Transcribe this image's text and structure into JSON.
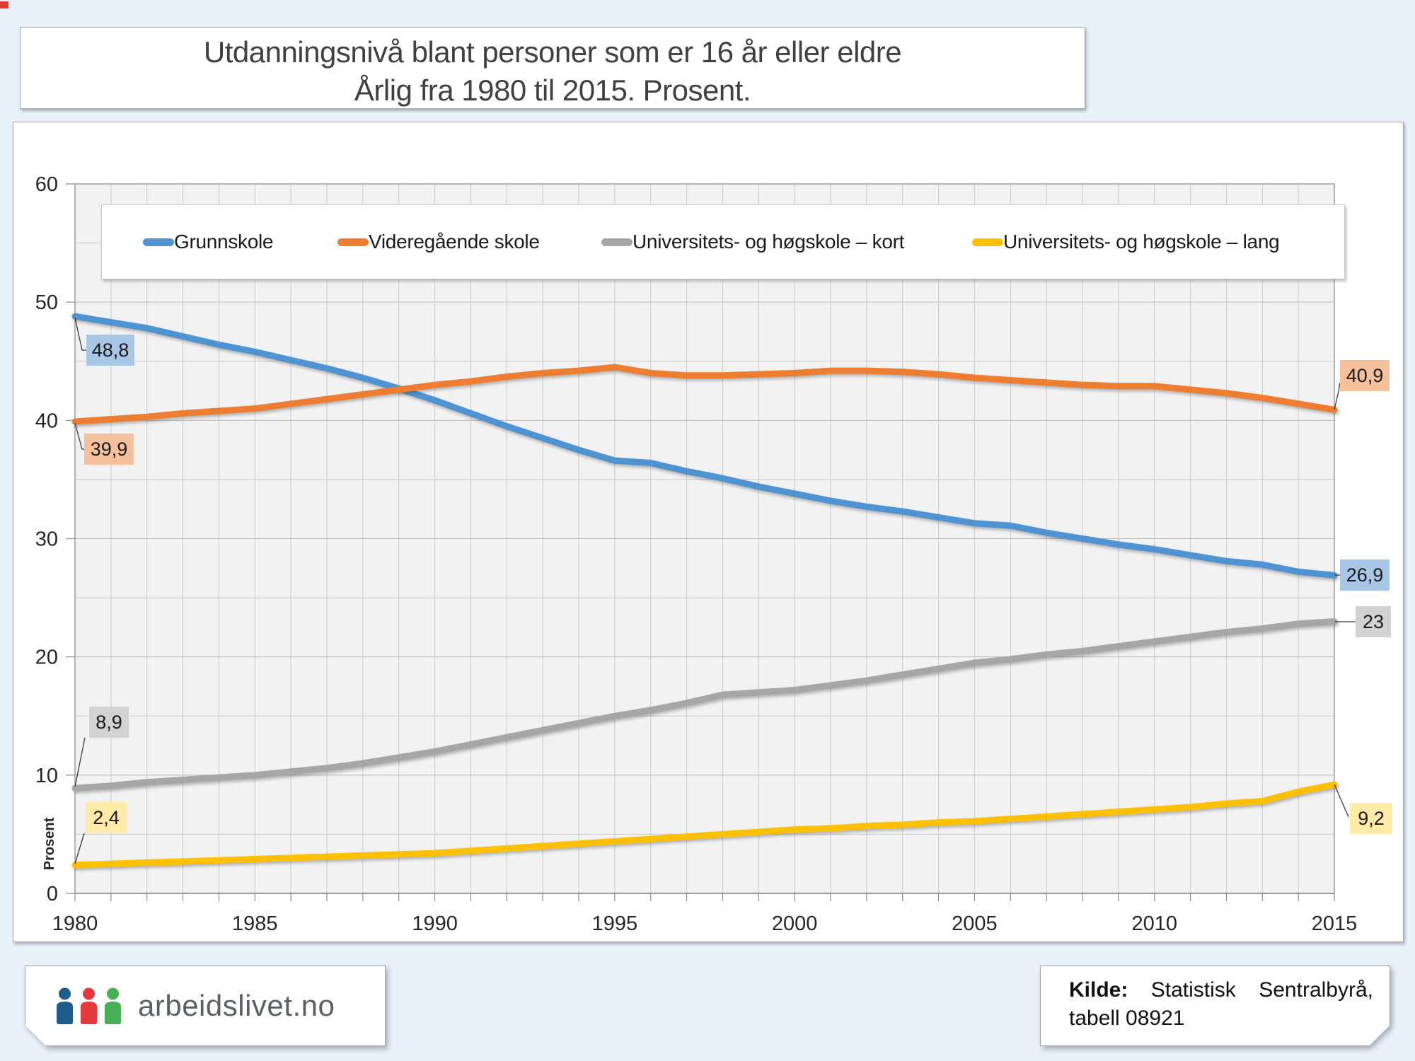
{
  "title": {
    "line1": "Utdanningsnivå blant personer som er 16 år eller eldre",
    "line2": "Årlig fra 1980 til 2015. Prosent."
  },
  "chart_data": {
    "type": "line",
    "xlim": [
      1980,
      2015
    ],
    "ylim": [
      0,
      60
    ],
    "xticks": [
      1980,
      1985,
      1990,
      1995,
      2000,
      2005,
      2010,
      2015
    ],
    "yticks": [
      0,
      10,
      20,
      30,
      40,
      50,
      60
    ],
    "ylabel": "Prosent",
    "grid": true,
    "legend_position": "top",
    "x_step": 1,
    "series": [
      {
        "name": "Grunnskole",
        "color": "#4e94d2",
        "label_bg": "#a8c6e5",
        "start_label": "48,8",
        "end_label": "26,9",
        "values": [
          48.8,
          48.3,
          47.8,
          47.1,
          46.4,
          45.8,
          45.1,
          44.4,
          43.6,
          42.7,
          41.7,
          40.6,
          39.5,
          38.5,
          37.5,
          36.6,
          36.4,
          35.7,
          35.1,
          34.4,
          33.8,
          33.2,
          32.7,
          32.3,
          31.8,
          31.3,
          31.1,
          30.5,
          30.0,
          29.5,
          29.1,
          28.6,
          28.1,
          27.8,
          27.2,
          26.9
        ]
      },
      {
        "name": "Videregående skole",
        "color": "#ed7d31",
        "label_bg": "#f4c19c",
        "start_label": "39,9",
        "end_label": "40,9",
        "values": [
          39.9,
          40.1,
          40.3,
          40.6,
          40.8,
          41.0,
          41.4,
          41.8,
          42.2,
          42.6,
          43.0,
          43.3,
          43.7,
          44.0,
          44.2,
          44.5,
          44.0,
          43.8,
          43.8,
          43.9,
          44.0,
          44.2,
          44.2,
          44.1,
          43.9,
          43.6,
          43.4,
          43.2,
          43.0,
          42.9,
          42.9,
          42.6,
          42.3,
          41.9,
          41.4,
          40.9
        ]
      },
      {
        "name": "Universitets- og høgskole – kort",
        "color": "#a6a6a6",
        "label_bg": "#d2d2d2",
        "start_label": "8,9",
        "end_label": "23",
        "values": [
          8.9,
          9.1,
          9.4,
          9.6,
          9.8,
          10.0,
          10.3,
          10.6,
          11.0,
          11.5,
          12.0,
          12.6,
          13.2,
          13.8,
          14.4,
          15.0,
          15.5,
          16.1,
          16.8,
          17.0,
          17.2,
          17.6,
          18.0,
          18.5,
          19.0,
          19.5,
          19.8,
          20.2,
          20.5,
          20.9,
          21.3,
          21.7,
          22.1,
          22.4,
          22.8,
          23.0
        ]
      },
      {
        "name": "Universitets- og høgskole – lang",
        "color": "#ffc000",
        "label_bg": "#ffeaa8",
        "start_label": "2,4",
        "end_label": "9,2",
        "values": [
          2.4,
          2.5,
          2.6,
          2.7,
          2.8,
          2.9,
          3.0,
          3.1,
          3.2,
          3.3,
          3.4,
          3.6,
          3.8,
          4.0,
          4.2,
          4.4,
          4.6,
          4.8,
          5.0,
          5.2,
          5.4,
          5.5,
          5.7,
          5.8,
          6.0,
          6.1,
          6.3,
          6.5,
          6.7,
          6.9,
          7.1,
          7.3,
          7.6,
          7.8,
          8.6,
          9.2
        ]
      }
    ]
  },
  "footer": {
    "brand": "arbeidslivet.no",
    "source_label": "Kilde:",
    "source_text": "Statistisk Sentralbyrå, tabell 08921",
    "logo_colors": [
      "#1d5d8c",
      "#e5393e",
      "#47b056"
    ]
  }
}
